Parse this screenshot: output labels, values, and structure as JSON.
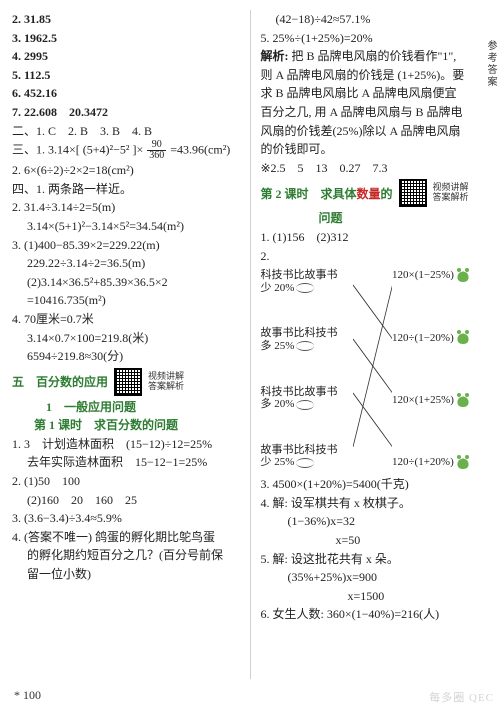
{
  "left": {
    "items": [
      "2. 31.85",
      "3. 1962.5",
      "4. 2995",
      "5. 112.5",
      "6. 452.16",
      "7. 22.608　20.3472"
    ],
    "sec2": "二、1. C　2. B　3. B　4. B",
    "sec3_prefix": "三、1. 3.14×[ (5+4)²−5² ]×",
    "sec3_frac_num": "90",
    "sec3_frac_den": "360",
    "sec3_suffix": "=43.96(cm²)",
    "sec3_line2": "2. 6×(6÷2)÷2×2=18(cm²)",
    "sec4": "四、1. 两条路一样近。",
    "sec4_lines": [
      "2. 31.4÷3.14÷2=5(m)",
      "　 3.14×(5+1)²−3.14×5²=34.54(m²)",
      "3. (1)400−85.39×2=229.22(m)",
      "　 229.22÷3.14÷2=36.5(m)",
      "　 (2)3.14×36.5²+85.39×36.5×2",
      "　 =10416.735(m²)",
      "4. 70厘米=0.7米",
      "　 3.14×0.7×100=219.8(米)",
      "　 6594÷219.8≈30(分)"
    ],
    "heading5": "五　百分数的应用",
    "heading5_sub": "1　一般应用问题",
    "lesson1": "第 1 课时　求百分数的问题",
    "q1_pre": "1. 3　计划造林面积　(15−12)÷12=25%",
    "q1_line2": "　 去年实际造林面积　15−12−1=25%",
    "q2": "2. (1)50　100",
    "q2b": "　 (2)160　20　160　25",
    "q3": "3. (3.6−3.4)÷3.4≈5.9%",
    "q4a": "4. (答案不唯一) 鸽蛋的孵化期比鸵鸟蛋",
    "q4b": "　 的孵化期约短百分之几？(百分号前保",
    "q4c": "　 留一位小数)",
    "qr_label": "视频讲解\n答案解析"
  },
  "right": {
    "top": [
      "　 (42−18)÷42≈57.1%",
      "5. 25%÷(1+25%)=20%"
    ],
    "explain_label": "解析:",
    "explain_lines": [
      "把 B 品牌电风扇的价钱看作\"1\",",
      "则 A 品牌电风扇的价钱是 (1+25%)。要",
      "求 B 品牌电风扇比 A 品牌电风扇便宜",
      "百分之几, 用 A 品牌电风扇与 B 品牌电",
      "风扇的价钱差(25%)除以 A 品牌电风扇",
      "的价钱即可。"
    ],
    "star_line": "※2.5　5　13　0.27　7.3",
    "lesson2_a": "第 2 课时　求具体",
    "lesson2_b": "数量",
    "lesson2_c": "的",
    "lesson2_d": "问题",
    "q1": "1. (1)156　(2)312",
    "q2": "2.",
    "match_left": [
      "科技书比故事书\n少 20%",
      "故事书比科技书\n多 25%",
      "科技书比故事书\n多 20%",
      "故事书比科技书\n少 25%"
    ],
    "match_right": [
      "120×(1−25%)",
      "120÷(1−20%)",
      "120×(1+25%)",
      "120÷(1+20%)"
    ],
    "q3": "3. 4500×(1+20%)=5400(千克)",
    "q4a": "4. 解: 设军棋共有 x 枚棋子。",
    "q4b": "　　 (1−36%)x=32",
    "q4c": "　　　　　　 x=50",
    "q5a": "5. 解: 设这批花共有 x 朵。",
    "q5b": "　　 (35%+25%)x=900",
    "q5c": "　　　　　　　 x=1500",
    "q6": "6. 女生人数: 360×(1−40%)=216(人)",
    "qr_label": "视频讲解\n答案解析"
  },
  "footer": "* 100",
  "watermark": "每多圈 QEC",
  "sidebar": "参考答案"
}
